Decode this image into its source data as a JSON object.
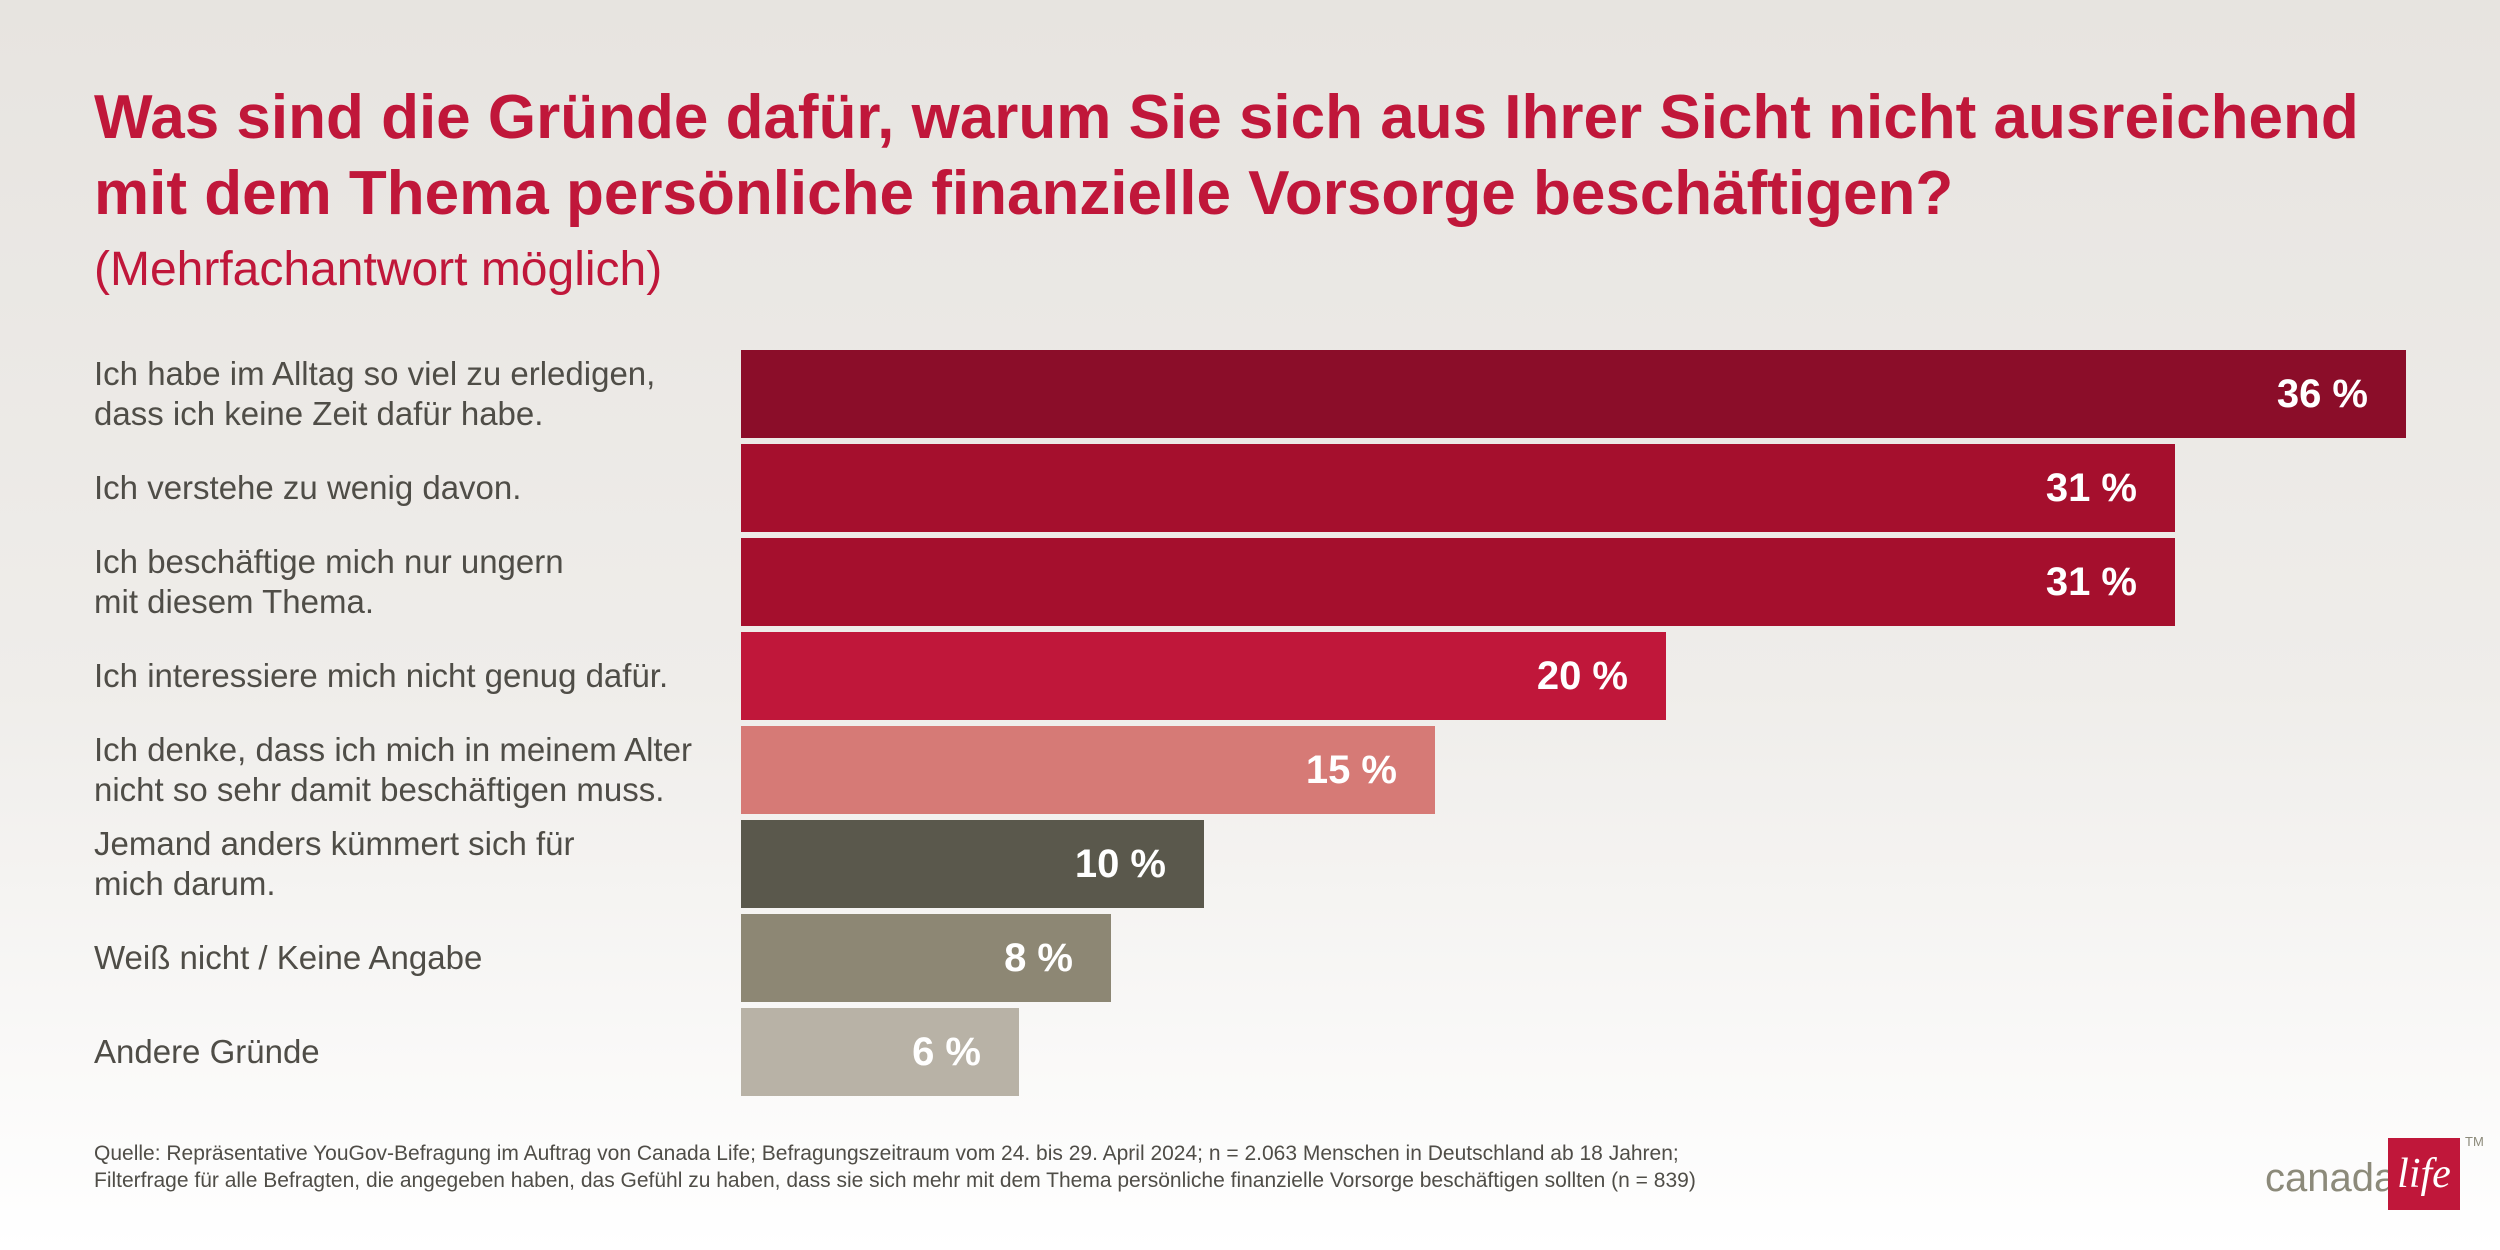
{
  "title": "Was sind die Gründe dafür, warum Sie sich aus Ihrer Sicht nicht ausreichend mit dem Thema persönliche finanzielle Vorsorge beschäftigen?",
  "subtitle": "(Mehrfachantwort möglich)",
  "chart_data": {
    "type": "bar",
    "orientation": "horizontal",
    "unit": "%",
    "categories": [
      "Ich habe im Alltag so viel zu erledigen,\ndass ich keine Zeit dafür habe.",
      "Ich verstehe zu wenig davon.",
      "Ich beschäftige mich nur ungern\nmit diesem Thema.",
      "Ich interessiere mich nicht genug dafür.",
      "Ich denke, dass ich mich in meinem Alter\nnicht so sehr damit beschäftigen muss.",
      "Jemand anders kümmert sich für\nmich darum.",
      "Weiß nicht / Keine Angabe",
      "Andere Gründe"
    ],
    "values": [
      36,
      31,
      31,
      20,
      15,
      10,
      8,
      6
    ],
    "value_labels": [
      "36 %",
      "31 %",
      "31 %",
      "20 %",
      "15 %",
      "10 %",
      "8 %",
      "6 %"
    ],
    "colors": [
      "#8b0d29",
      "#a50f2d",
      "#a50f2d",
      "#c0173a",
      "#d67a76",
      "#5a584c",
      "#8d8774",
      "#b8b2a6"
    ],
    "axis_visible": false,
    "grid": false,
    "legend": "none"
  },
  "footnote": {
    "line1": "Quelle: Repräsentative YouGov-Befragung im Auftrag von Canada Life; Befragungszeitraum vom 24. bis 29. April 2024; n = 2.063 Menschen in Deutschland ab 18 Jahren;",
    "line2": "Filterfrage für alle Befragten, die angegeben haben, das Gefühl zu haben, dass sie sich mehr mit dem Thema persönliche finanzielle Vorsorge beschäftigen sollten (n = 839)"
  },
  "logo": {
    "word": "canada",
    "mark": "life",
    "tm": "TM",
    "color": "#c0173a"
  }
}
